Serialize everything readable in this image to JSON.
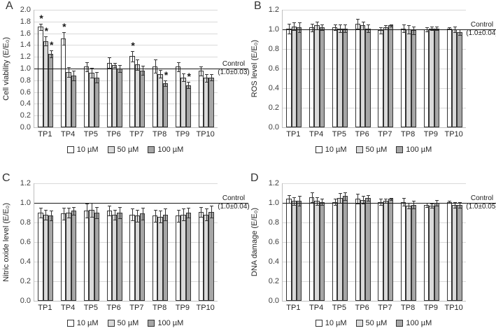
{
  "legend": {
    "items": [
      {
        "label": "10 µM",
        "fill": "#ffffff",
        "hollow": true
      },
      {
        "label": "50 µM",
        "fill": "#d9d9d9",
        "hollow": false
      },
      {
        "label": "100 µM",
        "fill": "#a6a6a6",
        "hollow": false
      }
    ]
  },
  "colors": {
    "bar_border": "#333333",
    "gridline": "#d9d9d9",
    "axis_line": "#bfbfbf",
    "control_line": "#1a1a1a",
    "error_bar": "#333333",
    "text": "#262626"
  },
  "significance_marker": "*",
  "chart_data": [
    {
      "panel": "A",
      "type": "bar",
      "ylabel": "Cell viability (E/E₀)",
      "ylim": [
        0,
        2.0
      ],
      "ytick_step": 0.2,
      "control_label": "Control",
      "control_value": "(1.0±0.03)",
      "control_line_at": 1.0,
      "categories": [
        "TP1",
        "TP4",
        "TP5",
        "TP6",
        "TP7",
        "TP8",
        "TP9",
        "TP10"
      ],
      "series": [
        {
          "name": "10 µM",
          "values": [
            1.71,
            1.51,
            1.03,
            1.1,
            1.21,
            1.04,
            1.03,
            0.96
          ],
          "errors": [
            0.05,
            0.11,
            0.08,
            0.09,
            0.09,
            0.11,
            0.08,
            0.08
          ],
          "sig": [
            1,
            1,
            0,
            0,
            1,
            0,
            0,
            0
          ]
        },
        {
          "name": "50 µM",
          "values": [
            1.47,
            0.94,
            0.93,
            1.06,
            1.07,
            0.91,
            0.85,
            0.84
          ],
          "errors": [
            0.08,
            0.08,
            0.08,
            0.04,
            0.09,
            0.07,
            0.07,
            0.07
          ],
          "sig": [
            1,
            0,
            0,
            0,
            0,
            0,
            0,
            0
          ]
        },
        {
          "name": "100 µM",
          "values": [
            1.25,
            0.88,
            0.85,
            1.0,
            0.97,
            0.75,
            0.72,
            0.85
          ],
          "errors": [
            0.06,
            0.08,
            0.09,
            0.06,
            0.08,
            0.05,
            0.05,
            0.05
          ],
          "sig": [
            1,
            0,
            0,
            0,
            0,
            1,
            1,
            0
          ]
        }
      ]
    },
    {
      "panel": "B",
      "type": "bar",
      "ylabel": "ROS level (E/E₀)",
      "ylim": [
        0,
        1.2
      ],
      "ytick_step": 0.2,
      "control_label": "Control",
      "control_value": "(1.0±0.04)",
      "control_line_at": 1.0,
      "categories": [
        "TP1",
        "TP4",
        "TP5",
        "TP6",
        "TP7",
        "TP8",
        "TP9",
        "TP10"
      ],
      "series": [
        {
          "name": "10 µM",
          "values": [
            1.01,
            1.02,
            1.02,
            1.06,
            0.99,
            1.01,
            1.0,
            1.01
          ],
          "errors": [
            0.05,
            0.04,
            0.03,
            0.05,
            0.03,
            0.04,
            0.02,
            0.01
          ],
          "sig": [
            0,
            0,
            0,
            0,
            0,
            0,
            0,
            0
          ]
        },
        {
          "name": "50 µM",
          "values": [
            1.03,
            1.04,
            1.01,
            1.04,
            1.02,
            1.0,
            1.01,
            1.0
          ],
          "errors": [
            0.04,
            0.04,
            0.04,
            0.04,
            0.02,
            0.04,
            0.02,
            0.03
          ],
          "sig": [
            0,
            0,
            0,
            0,
            0,
            0,
            0,
            0
          ]
        },
        {
          "name": "100 µM",
          "values": [
            1.02,
            1.02,
            1.01,
            1.01,
            1.04,
            0.99,
            1.01,
            0.97
          ],
          "errors": [
            0.05,
            0.03,
            0.04,
            0.04,
            0.01,
            0.04,
            0.02,
            0.03
          ],
          "sig": [
            0,
            0,
            0,
            0,
            0,
            0,
            0,
            0
          ]
        }
      ]
    },
    {
      "panel": "C",
      "type": "bar",
      "ylabel": "Nitric oxide level (E/E₀)",
      "ylim": [
        0,
        1.2
      ],
      "ytick_step": 0.2,
      "control_label": "Control",
      "control_value": "(1.0±0.04)",
      "control_line_at": 1.0,
      "categories": [
        "TP1",
        "TP4",
        "TP5",
        "TP6",
        "TP7",
        "TP8",
        "TP9",
        "TP10"
      ],
      "series": [
        {
          "name": "10 µM",
          "values": [
            0.9,
            0.89,
            0.92,
            0.92,
            0.88,
            0.87,
            0.87,
            0.91
          ],
          "errors": [
            0.05,
            0.06,
            0.07,
            0.05,
            0.06,
            0.06,
            0.06,
            0.05
          ],
          "sig": [
            0,
            0,
            0,
            0,
            0,
            0,
            0,
            0
          ]
        },
        {
          "name": "50 µM",
          "values": [
            0.88,
            0.9,
            0.93,
            0.88,
            0.87,
            0.86,
            0.88,
            0.88
          ],
          "errors": [
            0.05,
            0.05,
            0.07,
            0.05,
            0.06,
            0.06,
            0.06,
            0.06
          ],
          "sig": [
            0,
            0,
            0,
            0,
            0,
            0,
            0,
            0
          ]
        },
        {
          "name": "100 µM",
          "values": [
            0.87,
            0.92,
            0.9,
            0.9,
            0.89,
            0.88,
            0.9,
            0.91
          ],
          "errors": [
            0.05,
            0.04,
            0.06,
            0.06,
            0.06,
            0.06,
            0.05,
            0.06
          ],
          "sig": [
            0,
            0,
            0,
            0,
            0,
            0,
            0,
            0
          ]
        }
      ]
    },
    {
      "panel": "D",
      "type": "bar",
      "ylabel": "DNA damage (E/E₀)",
      "ylim": [
        0,
        1.2
      ],
      "ytick_step": 0.2,
      "control_label": "Control",
      "control_value": "(1.0±0.05)",
      "control_line_at": 1.0,
      "categories": [
        "TP1",
        "TP4",
        "TP5",
        "TP6",
        "TP7",
        "TP8",
        "TP9",
        "TP10"
      ],
      "series": [
        {
          "name": "10 µM",
          "values": [
            1.04,
            1.06,
            1.01,
            1.04,
            1.01,
            1.01,
            0.98,
            1.01
          ],
          "errors": [
            0.04,
            0.05,
            0.03,
            0.05,
            0.03,
            0.04,
            0.02,
            0.01
          ],
          "sig": [
            0,
            0,
            0,
            0,
            0,
            0,
            0,
            0
          ]
        },
        {
          "name": "50 µM",
          "values": [
            1.02,
            1.02,
            1.05,
            1.03,
            1.02,
            0.97,
            0.97,
            0.98
          ],
          "errors": [
            0.04,
            0.04,
            0.05,
            0.04,
            0.02,
            0.03,
            0.02,
            0.03
          ],
          "sig": [
            0,
            0,
            0,
            0,
            0,
            0,
            0,
            0
          ]
        },
        {
          "name": "100 µM",
          "values": [
            1.02,
            1.01,
            1.07,
            1.05,
            1.04,
            0.98,
            1.0,
            0.98
          ],
          "errors": [
            0.05,
            0.03,
            0.04,
            0.03,
            0.01,
            0.04,
            0.03,
            0.03
          ],
          "sig": [
            0,
            0,
            0,
            0,
            0,
            0,
            0,
            0
          ]
        }
      ]
    }
  ]
}
